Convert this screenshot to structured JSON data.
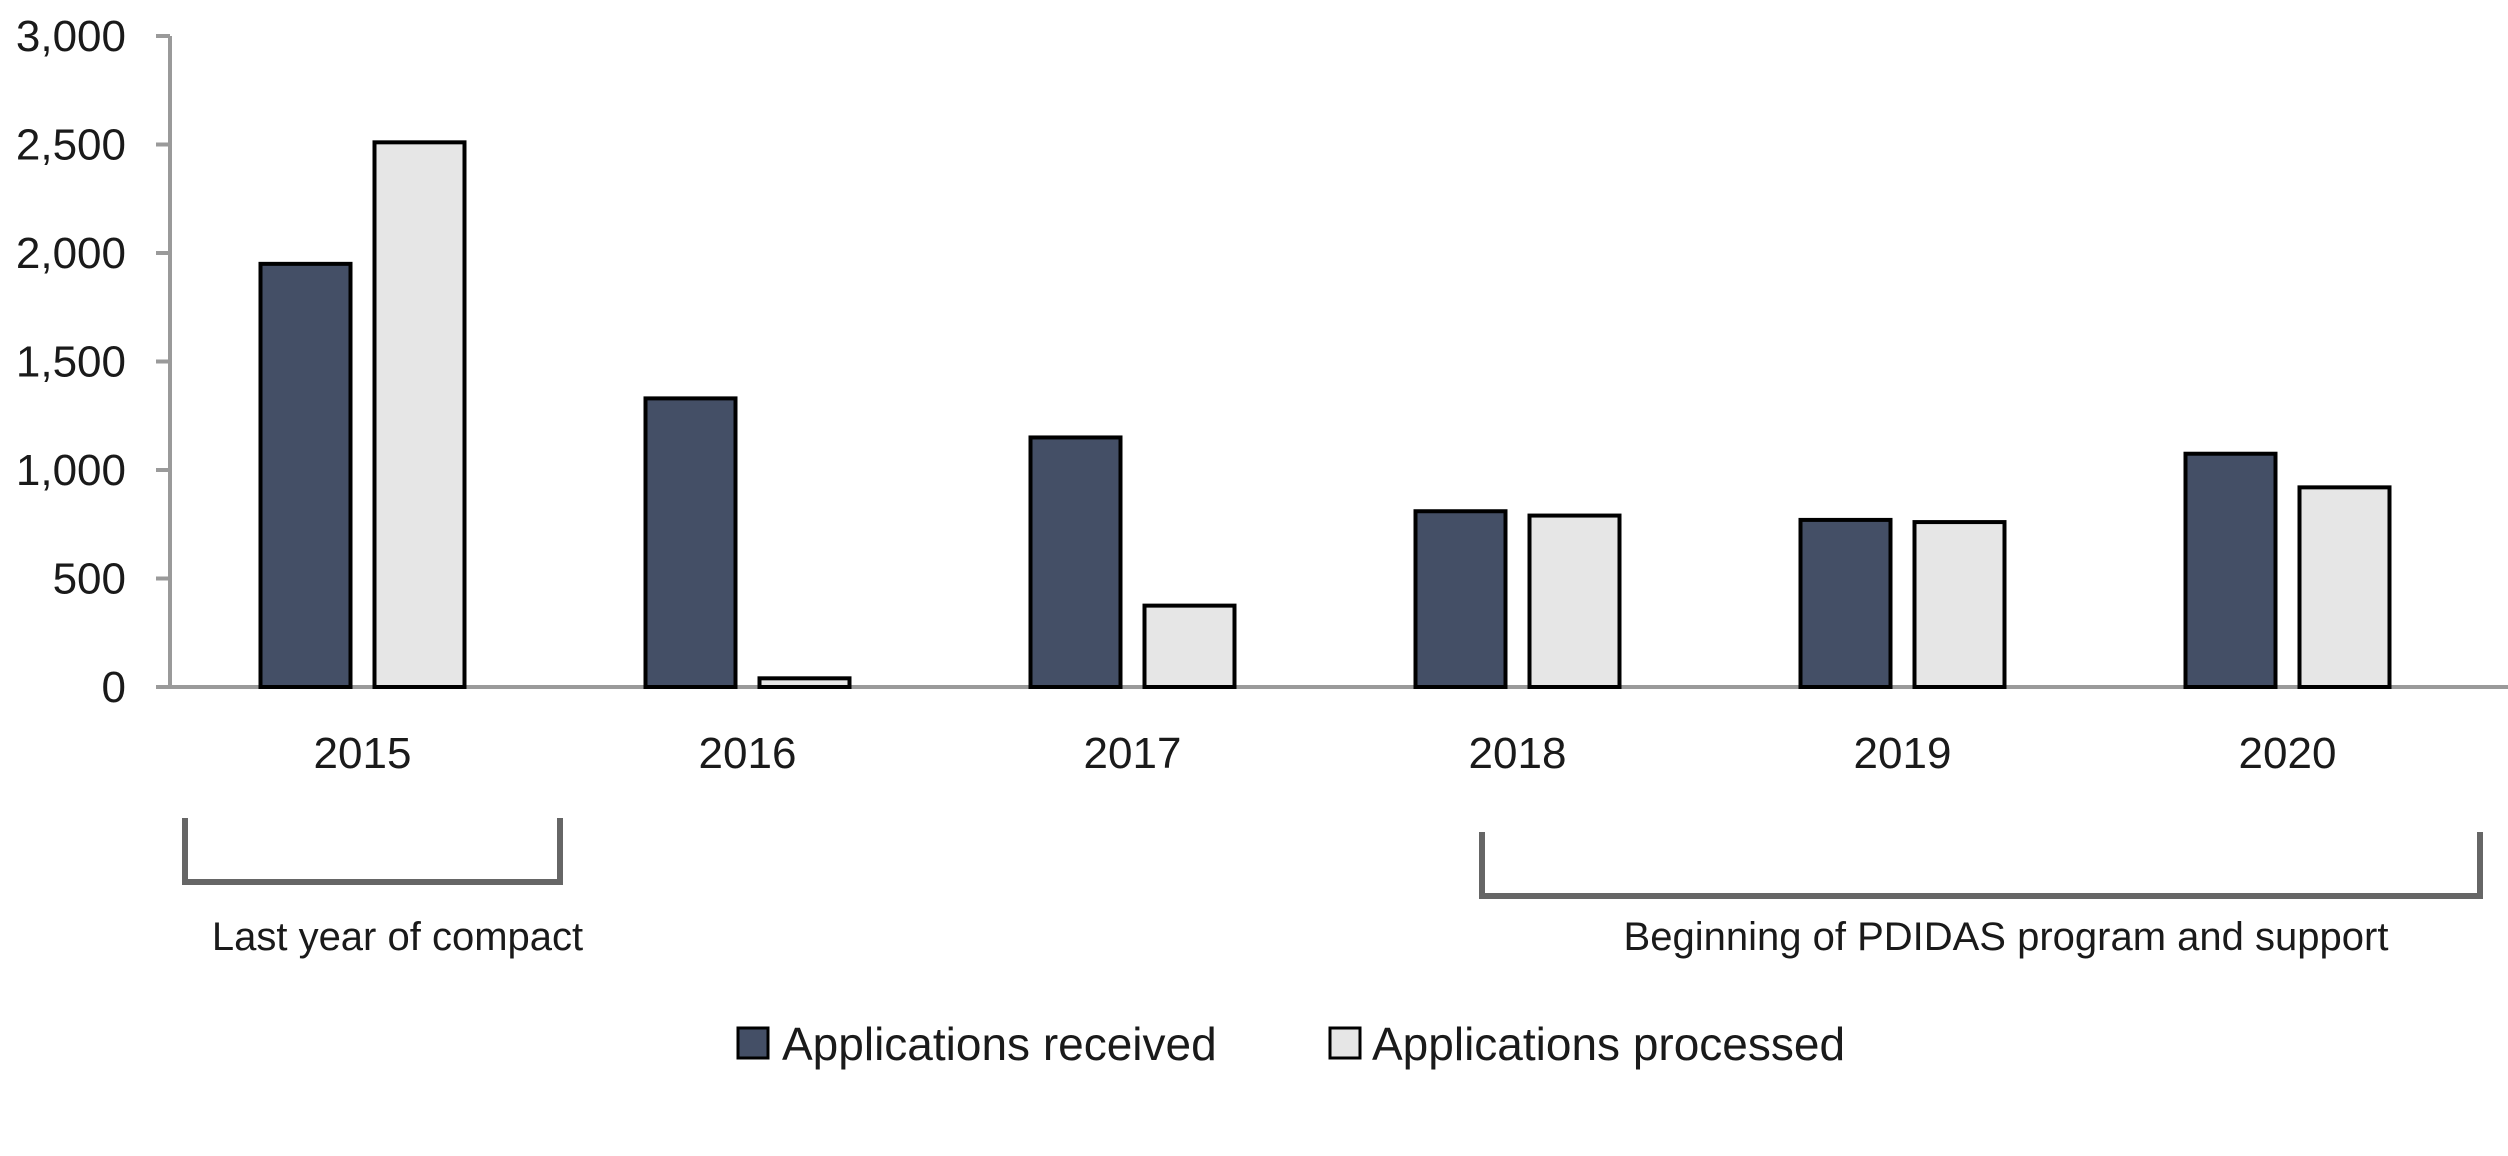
{
  "chart_data": {
    "type": "bar",
    "categories": [
      "2015",
      "2016",
      "2017",
      "2018",
      "2019",
      "2020"
    ],
    "series": [
      {
        "name": "Applications received",
        "values": [
          1950,
          1330,
          1150,
          810,
          770,
          1075
        ],
        "color": "#444f66"
      },
      {
        "name": "Applications processed",
        "values": [
          2510,
          40,
          375,
          790,
          760,
          920
        ],
        "color": "#e6e6e6"
      }
    ],
    "yticks": [
      "3,000",
      "2,500",
      "2,000",
      "1,500",
      "1,000",
      "500",
      "0"
    ],
    "ylim": [
      0,
      3000
    ],
    "grid": false,
    "legend_position": "bottom",
    "annotations": [
      {
        "text": "Last year of compact",
        "from": "2015",
        "to": "2015"
      },
      {
        "text": "Beginning of PDIDAS program and support",
        "from": "2018",
        "to": "2020"
      }
    ]
  }
}
